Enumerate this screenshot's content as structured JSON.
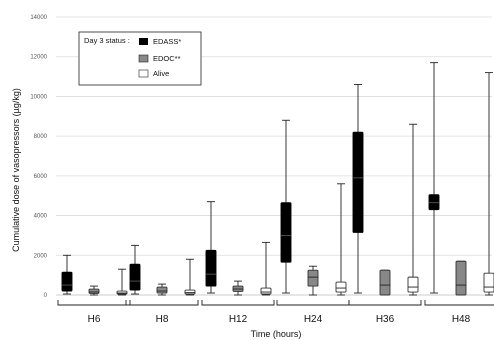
{
  "chart_data": {
    "type": "box",
    "xlabel": "Time (hours)",
    "ylabel": "Cumulative dose of vasopressors (µg/kg)",
    "ylim": [
      0,
      14000
    ],
    "yticks": [
      0,
      2000,
      4000,
      6000,
      8000,
      10000,
      12000,
      14000
    ],
    "grid": "horizontal",
    "categories": [
      "H6",
      "H8",
      "H12",
      "H24",
      "H36",
      "H48"
    ],
    "legend": {
      "title": "Day 3 status :",
      "position": "top-left"
    },
    "series": [
      {
        "name": "EDASS*",
        "color": "#000000",
        "boxes": [
          {
            "min": 50,
            "q1": 200,
            "median": 500,
            "q3": 1150,
            "max": 2000
          },
          {
            "min": 50,
            "q1": 250,
            "median": 700,
            "q3": 1550,
            "max": 2500
          },
          {
            "min": 100,
            "q1": 450,
            "median": 1050,
            "q3": 2250,
            "max": 4700
          },
          {
            "min": 100,
            "q1": 1650,
            "median": 3000,
            "q3": 4650,
            "max": 8800
          },
          {
            "min": 100,
            "q1": 3150,
            "median": 5900,
            "q3": 8200,
            "max": 10600
          },
          {
            "min": 100,
            "q1": 4300,
            "median": 4650,
            "q3": 5050,
            "max": 11700
          }
        ]
      },
      {
        "name": "EDOC**",
        "color": "#888888",
        "boxes": [
          {
            "min": 0,
            "q1": 80,
            "median": 150,
            "q3": 300,
            "max": 450
          },
          {
            "min": 0,
            "q1": 100,
            "median": 200,
            "q3": 400,
            "max": 550
          },
          {
            "min": 0,
            "q1": 180,
            "median": 300,
            "q3": 450,
            "max": 700
          },
          {
            "min": 0,
            "q1": 450,
            "median": 900,
            "q3": 1250,
            "max": 1450
          },
          {
            "min": 0,
            "q1": 0,
            "median": 500,
            "q3": 1250,
            "max": 1250
          },
          {
            "min": 0,
            "q1": 0,
            "median": 500,
            "q3": 1700,
            "max": 1700
          }
        ]
      },
      {
        "name": "Alive",
        "color": "#ffffff",
        "boxes": [
          {
            "min": 0,
            "q1": 50,
            "median": 100,
            "q3": 200,
            "max": 1300
          },
          {
            "min": 0,
            "q1": 50,
            "median": 120,
            "q3": 250,
            "max": 1800
          },
          {
            "min": 0,
            "q1": 50,
            "median": 150,
            "q3": 350,
            "max": 2650
          },
          {
            "min": 0,
            "q1": 150,
            "median": 350,
            "q3": 650,
            "max": 5600
          },
          {
            "min": 0,
            "q1": 150,
            "median": 400,
            "q3": 900,
            "max": 8600
          },
          {
            "min": 0,
            "q1": 150,
            "median": 400,
            "q3": 1100,
            "max": 11200
          }
        ]
      }
    ]
  }
}
